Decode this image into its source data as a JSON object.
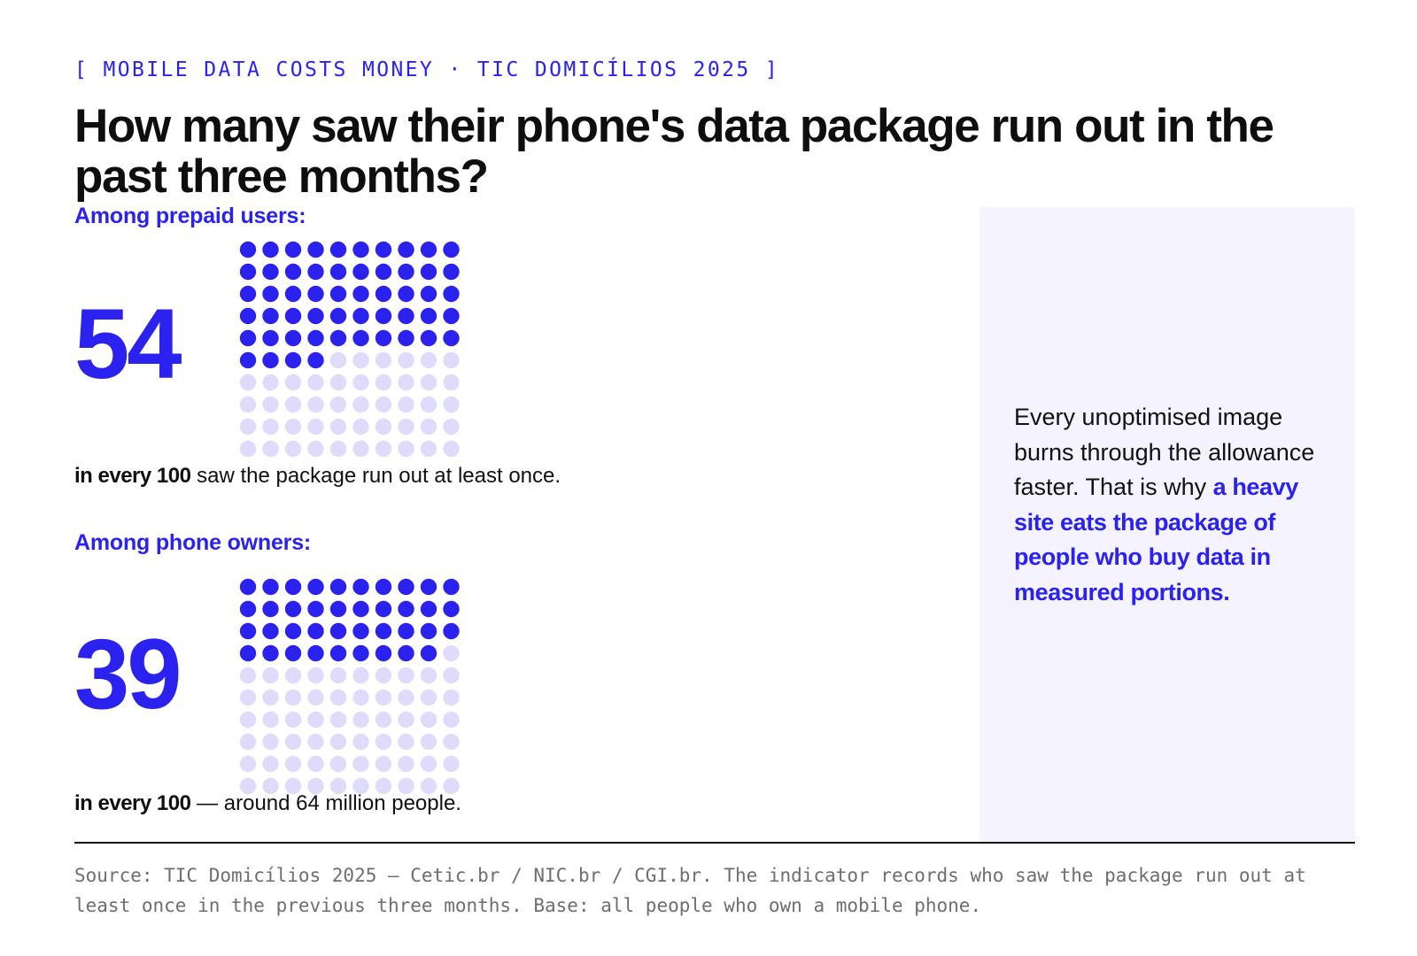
{
  "kicker": "[ MOBILE DATA COSTS MONEY · TIC DOMICÍLIOS 2025 ]",
  "title": "How many saw their phone's data package run out in the past three months?",
  "colors": {
    "accent": "#2b22f0",
    "dot_filled": "#2b22f0",
    "dot_empty": "#dedbfb",
    "sidebar_bg": "#f4f3ff"
  },
  "chart_data": [
    {
      "type": "waffle",
      "label": "Among prepaid users:",
      "value": 54,
      "total": 100,
      "grid": [
        10,
        10
      ],
      "caption_bold": "in every 100",
      "caption_rest": " saw the package run out at least once."
    },
    {
      "type": "waffle",
      "label": "Among phone owners:",
      "value": 39,
      "total": 100,
      "grid": [
        10,
        10
      ],
      "caption_bold": "in every 100",
      "caption_rest": " — around 64 million people."
    }
  ],
  "sidebar": {
    "text_plain": "Every unoptimised image burns through the allowance faster. That is why ",
    "text_highlight": "a heavy site eats the package of people who buy data in measured portions."
  },
  "source": "Source: TIC Domicílios 2025 — Cetic.br / NIC.br / CGI.br. The indicator records who saw the package run out at least once in the previous three months. Base: all people who own a mobile phone."
}
